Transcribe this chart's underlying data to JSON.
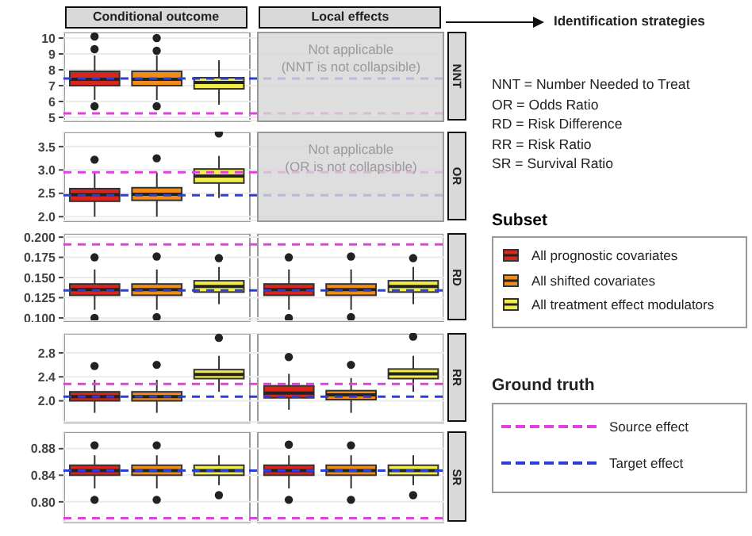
{
  "chart_data": [
    {
      "type": "box",
      "y2label": "NNT",
      "categories": [
        null,
        null,
        null,
        null,
        null,
        null
      ],
      "ylim": [
        4.8,
        10.4
      ],
      "yticks": [
        5,
        6,
        7,
        8,
        9,
        10
      ],
      "tick_labels": "y",
      "grid": true,
      "legend": "right",
      "legend_title": "Subset",
      "annotations": [
        "Not applicable",
        "(NNT is not collapsible)"
      ],
      "series": [
        {
          "name": "All prognostic covariates",
          "color": "#d7261e",
          "boxes": [
            {
              "low": 6.1,
              "q1": 7.0,
              "median": 7.4,
              "q3": 7.9,
              "high": 8.9,
              "outliers": [
                10.1,
                9.3,
                5.7
              ]
            },
            null,
            null,
            null,
            null,
            null
          ]
        },
        {
          "name": "All shifted covariates",
          "color": "#f08c1a",
          "boxes": [
            null,
            {
              "low": 6.1,
              "q1": 7.0,
              "median": 7.4,
              "q3": 7.9,
              "high": 8.9,
              "outliers": [
                10.0,
                9.2,
                5.7
              ]
            },
            null,
            null,
            null,
            null
          ]
        },
        {
          "name": "All treatment effect modulators",
          "color": "#f0ec48",
          "boxes": [
            null,
            null,
            {
              "low": 5.8,
              "q1": 6.8,
              "median": 7.2,
              "q3": 7.5,
              "high": 8.6
            },
            null,
            null,
            null
          ]
        }
      ],
      "ref_lines": [
        {
          "axis": "y",
          "value": 5.25,
          "label": "Source effect",
          "color": "#e040e0",
          "line_style": "dashed"
        },
        {
          "axis": "y",
          "value": 7.45,
          "label": "Target effect",
          "color": "#2b3fd8",
          "line_style": "dashed"
        }
      ]
    },
    {
      "type": "box",
      "y2label": "OR",
      "categories": [
        null,
        null,
        null,
        null,
        null,
        null
      ],
      "ylim": [
        1.92,
        3.82
      ],
      "yticks": [
        {
          "value": 2,
          "label": "2.0"
        },
        2.5,
        {
          "value": 3,
          "label": "3.0"
        },
        3.5
      ],
      "tick_labels": "y",
      "grid": true,
      "annotations": [
        "Not applicable",
        "(OR is not collapsible)"
      ],
      "series": [
        {
          "color": "#d7261e",
          "boxes": [
            {
              "low": 2.0,
              "q1": 2.33,
              "median": 2.47,
              "q3": 2.6,
              "high": 2.95,
              "outliers": [
                3.22
              ]
            },
            null,
            null,
            null,
            null,
            null
          ]
        },
        {
          "color": "#f08c1a",
          "boxes": [
            null,
            {
              "low": 2.0,
              "q1": 2.35,
              "median": 2.48,
              "q3": 2.62,
              "high": 2.95,
              "outliers": [
                3.25
              ]
            },
            null,
            null,
            null,
            null
          ]
        },
        {
          "color": "#f0ec48",
          "boxes": [
            null,
            null,
            {
              "low": 2.4,
              "q1": 2.72,
              "median": 2.87,
              "q3": 3.02,
              "high": 3.3,
              "outliers": [
                3.78
              ]
            },
            null,
            null,
            null
          ]
        }
      ],
      "ref_lines": [
        {
          "axis": "y",
          "value": 2.95,
          "color": "#e040e0",
          "line_style": "dashed"
        },
        {
          "axis": "y",
          "value": 2.46,
          "color": "#2b3fd8",
          "line_style": "dashed"
        }
      ]
    },
    {
      "type": "box",
      "y2label": "RD",
      "categories": [
        null,
        null,
        null,
        null,
        null,
        null
      ],
      "ylim": [
        0.097,
        0.205
      ],
      "yticks": [
        {
          "value": 0.1,
          "label": "0.100"
        },
        0.125,
        {
          "value": 0.15,
          "label": "0.150"
        },
        0.175,
        {
          "value": 0.2,
          "label": "0.200"
        }
      ],
      "tick_labels": "y",
      "grid": true,
      "series": [
        {
          "color": "#d7261e",
          "boxes": [
            {
              "low": 0.11,
              "q1": 0.128,
              "median": 0.135,
              "q3": 0.142,
              "high": 0.16,
              "outliers": [
                0.175,
                0.1
              ]
            },
            null,
            null,
            {
              "low": 0.11,
              "q1": 0.128,
              "median": 0.135,
              "q3": 0.142,
              "high": 0.16,
              "outliers": [
                0.175,
                0.1
              ]
            },
            null,
            null
          ]
        },
        {
          "color": "#f08c1a",
          "boxes": [
            null,
            {
              "low": 0.11,
              "q1": 0.128,
              "median": 0.135,
              "q3": 0.142,
              "high": 0.16,
              "outliers": [
                0.176,
                0.101
              ]
            },
            null,
            null,
            {
              "low": 0.11,
              "q1": 0.128,
              "median": 0.135,
              "q3": 0.142,
              "high": 0.16,
              "outliers": [
                0.176,
                0.101
              ]
            },
            null
          ]
        },
        {
          "color": "#f0ec48",
          "boxes": [
            null,
            null,
            {
              "low": 0.117,
              "q1": 0.132,
              "median": 0.139,
              "q3": 0.146,
              "high": 0.163,
              "outliers": [
                0.174
              ]
            },
            null,
            null,
            {
              "low": 0.117,
              "q1": 0.132,
              "median": 0.139,
              "q3": 0.146,
              "high": 0.163,
              "outliers": [
                0.174
              ]
            }
          ]
        }
      ],
      "ref_lines": [
        {
          "axis": "y",
          "value": 0.191,
          "color": "#e040e0",
          "line_style": "dashed"
        },
        {
          "axis": "y",
          "value": 0.134,
          "color": "#2b3fd8",
          "line_style": "dashed"
        }
      ]
    },
    {
      "type": "box",
      "y2label": "RR",
      "categories": [
        null,
        null,
        null,
        null,
        null,
        null
      ],
      "ylim": [
        1.65,
        3.13
      ],
      "yticks": [
        {
          "value": 2,
          "label": "2.0"
        },
        2.4,
        2.8
      ],
      "tick_labels": "y",
      "grid": true,
      "series": [
        {
          "color": "#d7261e",
          "boxes": [
            {
              "low": 1.8,
              "q1": 2.0,
              "median": 2.07,
              "q3": 2.15,
              "high": 2.35,
              "outliers": [
                2.58
              ]
            },
            null,
            null,
            {
              "low": 1.85,
              "q1": 2.05,
              "median": 2.13,
              "q3": 2.25,
              "high": 2.45,
              "outliers": [
                2.73
              ]
            },
            null,
            null
          ]
        },
        {
          "color": "#f08c1a",
          "boxes": [
            null,
            {
              "low": 1.8,
              "q1": 2.0,
              "median": 2.07,
              "q3": 2.15,
              "high": 2.35,
              "outliers": [
                2.6
              ]
            },
            null,
            null,
            {
              "low": 1.8,
              "q1": 2.02,
              "median": 2.1,
              "q3": 2.17,
              "high": 2.38,
              "outliers": [
                2.6
              ]
            },
            null
          ]
        },
        {
          "color": "#f0ec48",
          "boxes": [
            null,
            null,
            {
              "low": 2.15,
              "q1": 2.37,
              "median": 2.44,
              "q3": 2.52,
              "high": 2.75,
              "outliers": [
                3.05
              ]
            },
            null,
            null,
            {
              "low": 2.15,
              "q1": 2.37,
              "median": 2.45,
              "q3": 2.53,
              "high": 2.75,
              "outliers": [
                3.07
              ]
            }
          ]
        }
      ],
      "ref_lines": [
        {
          "axis": "y",
          "value": 2.28,
          "color": "#e040e0",
          "line_style": "dashed"
        },
        {
          "axis": "y",
          "value": 2.07,
          "color": "#2b3fd8",
          "line_style": "dashed"
        }
      ]
    },
    {
      "type": "box",
      "y2label": "SR",
      "categories": [
        null,
        null,
        null,
        null,
        null,
        null
      ],
      "ylim": [
        0.77,
        0.906
      ],
      "yticks": [
        {
          "value": 0.8,
          "label": "0.80"
        },
        0.84,
        0.88
      ],
      "tick_labels": "y",
      "grid": true,
      "series": [
        {
          "color": "#d7261e",
          "boxes": [
            {
              "low": 0.82,
              "q1": 0.84,
              "median": 0.847,
              "q3": 0.855,
              "high": 0.87,
              "outliers": [
                0.885,
                0.803
              ]
            },
            null,
            null,
            {
              "low": 0.82,
              "q1": 0.84,
              "median": 0.847,
              "q3": 0.855,
              "high": 0.87,
              "outliers": [
                0.886,
                0.803
              ]
            },
            null,
            null
          ]
        },
        {
          "color": "#f08c1a",
          "boxes": [
            null,
            {
              "low": 0.82,
              "q1": 0.84,
              "median": 0.847,
              "q3": 0.855,
              "high": 0.87,
              "outliers": [
                0.885,
                0.803
              ]
            },
            null,
            null,
            {
              "low": 0.82,
              "q1": 0.84,
              "median": 0.847,
              "q3": 0.855,
              "high": 0.87,
              "outliers": [
                0.885,
                0.803
              ]
            },
            null
          ]
        },
        {
          "color": "#f0ec48",
          "boxes": [
            null,
            null,
            {
              "low": 0.825,
              "q1": 0.84,
              "median": 0.847,
              "q3": 0.855,
              "high": 0.87,
              "outliers": [
                0.81
              ]
            },
            null,
            null,
            {
              "low": 0.825,
              "q1": 0.84,
              "median": 0.847,
              "q3": 0.855,
              "high": 0.87,
              "outliers": [
                0.81
              ]
            }
          ]
        }
      ],
      "ref_lines": [
        {
          "axis": "y",
          "value": 0.7755,
          "color": "#e040e0",
          "line_style": "dashed"
        },
        {
          "axis": "y",
          "value": 0.847,
          "color": "#2b3fd8",
          "line_style": "dashed"
        }
      ]
    },
    {
      "type": "other",
      "annotations": [
        "Conditional outcome",
        "Local effects",
        "Identification strategies",
        "NNT = Number Needed to Treat",
        "OR = Odds Ratio",
        "RD = Risk Difference",
        "RR = Risk Ratio",
        "SR = Survival Ratio",
        "Ground truth"
      ]
    }
  ]
}
